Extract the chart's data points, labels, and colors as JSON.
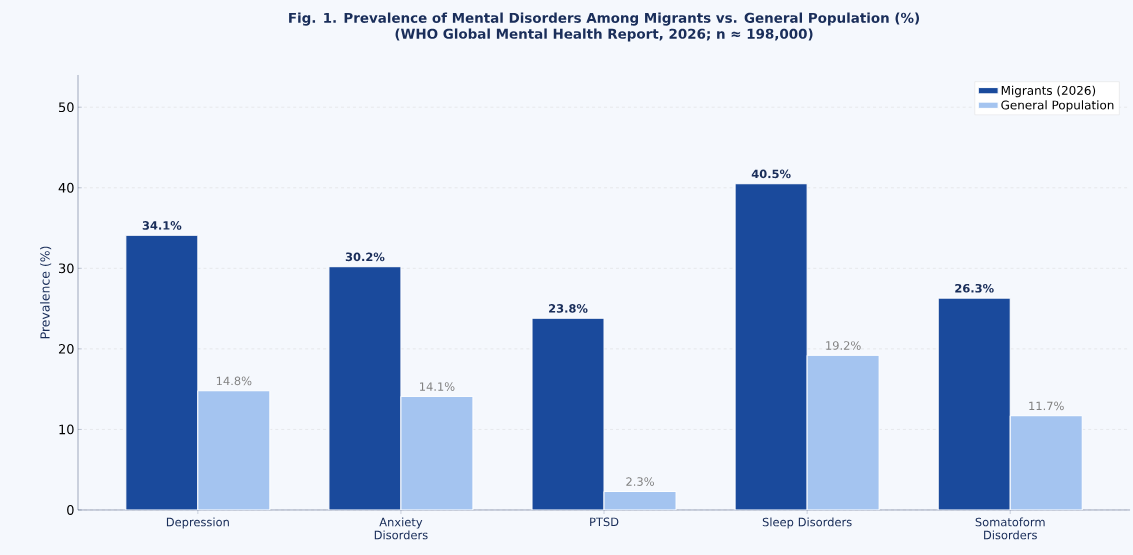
{
  "chart_data": {
    "type": "bar",
    "title": "Fig. 1. Prevalence of Mental Disorders Among Migrants vs. General Population (%)",
    "subtitle": "(WHO Global Mental Health Report, 2026; n ≈ 198,000)",
    "ylabel": "Prevalence (%)",
    "categories": [
      "Depression",
      "Anxiety Disorders",
      "PTSD",
      "Sleep Disorders",
      "Somatoform Disorders"
    ],
    "series": [
      {
        "name": "Migrants (2026)",
        "color": "#1a4a9c",
        "values": [
          34.1,
          30.2,
          23.8,
          40.5,
          26.3
        ],
        "value_labels": [
          "34.1%",
          "30.2%",
          "23.8%",
          "40.5%",
          "26.3%"
        ]
      },
      {
        "name": "General Population",
        "color": "#a4c4f0",
        "values": [
          14.8,
          14.1,
          2.3,
          19.2,
          11.7
        ],
        "value_labels": [
          "14.8%",
          "14.1%",
          "2.3%",
          "19.2%",
          "11.7%"
        ]
      }
    ],
    "ylim": [
      0,
      54
    ],
    "yticks": [
      0,
      10,
      20,
      30,
      40,
      50
    ],
    "grid": "y",
    "legend": "top right"
  }
}
